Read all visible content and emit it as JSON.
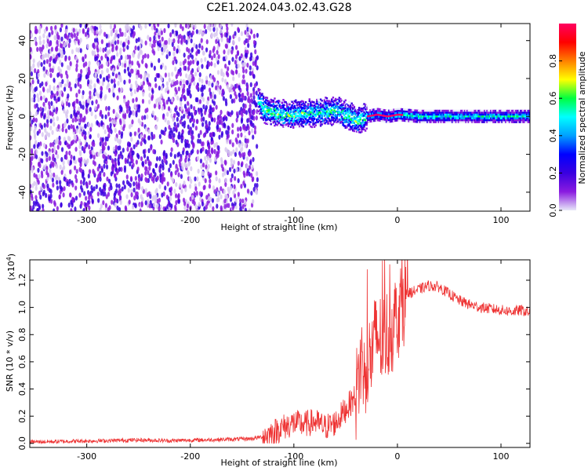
{
  "chart_data": [
    {
      "type": "heatmap",
      "title": "C2E1.2024.043.02.43.G28",
      "xlabel": "Height of straight line (km)",
      "ylabel": "Frequency (Hz)",
      "xlim": [
        -355,
        128
      ],
      "ylim": [
        -50,
        49
      ],
      "x_ticks": [
        "-300",
        "-200",
        "-100",
        "0",
        "100"
      ],
      "x_tick_values": [
        -300,
        -200,
        -100,
        0,
        100
      ],
      "y_ticks": [
        "-40",
        "-20",
        "0",
        "20",
        "40"
      ],
      "y_tick_values": [
        -40,
        -20,
        0,
        20,
        40
      ],
      "colorbar": {
        "label": "Normalized spectral amplitude",
        "range": [
          0,
          1
        ],
        "ticks": [
          "0.0",
          "0.2",
          "0.4",
          "0.6",
          "0.8"
        ],
        "tick_values": [
          0.0,
          0.2,
          0.4,
          0.6,
          0.8
        ],
        "colormap": [
          "#e8e8f8",
          "#8a1be0",
          "#3a00e0",
          "#0000ff",
          "#00a0ff",
          "#00ffff",
          "#00ff40",
          "#ffff00",
          "#ff8000",
          "#ff0000",
          "#ff0060"
        ]
      },
      "ridge": {
        "x": [
          -140,
          -130,
          -120,
          -100,
          -80,
          -60,
          -50,
          -40,
          -30,
          -20,
          -10,
          0,
          20,
          60,
          100,
          128
        ],
        "y": [
          14,
          4,
          2,
          1,
          2,
          3,
          1,
          -2,
          0,
          1,
          0,
          1,
          0,
          0,
          0,
          0
        ]
      }
    },
    {
      "type": "line",
      "xlabel": "Height of straight line (km)",
      "ylabel": "SNR (10 * v/v)",
      "y_exponent": "(x10",
      "y_exponent_power": "4",
      "y_exponent_close": ")",
      "xlim": [
        -355,
        128
      ],
      "ylim": [
        -0.03,
        1.35
      ],
      "x_ticks": [
        "-300",
        "-200",
        "-100",
        "0",
        "100"
      ],
      "x_tick_values": [
        -300,
        -200,
        -100,
        0,
        100
      ],
      "y_ticks": [
        "0.0",
        "0.2",
        "0.4",
        "0.6",
        "0.8",
        "1.0",
        "1.2"
      ],
      "y_tick_values": [
        0.0,
        0.2,
        0.4,
        0.6,
        0.8,
        1.0,
        1.2
      ],
      "color": "#ee3333",
      "series": [
        {
          "x": [
            -355,
            -320,
            -280,
            -250,
            -220,
            -190,
            -160,
            -140,
            -130,
            -120,
            -110,
            -100,
            -90,
            -80,
            -70,
            -60,
            -50,
            -40,
            -35,
            -30,
            -25,
            -20,
            -15,
            -10,
            -5,
            0,
            5,
            10,
            20,
            30,
            40,
            50,
            60,
            70,
            80,
            90,
            100,
            110,
            120,
            128
          ],
          "y": [
            0.01,
            0.015,
            0.02,
            0.025,
            0.02,
            0.025,
            0.03,
            0.035,
            0.05,
            0.08,
            0.12,
            0.15,
            0.14,
            0.16,
            0.12,
            0.15,
            0.25,
            0.35,
            0.6,
            0.55,
            0.65,
            0.8,
            0.75,
            0.8,
            0.85,
            0.95,
            1.05,
            1.1,
            1.13,
            1.16,
            1.15,
            1.1,
            1.05,
            1.02,
            1.0,
            0.99,
            0.98,
            0.97,
            0.98,
            0.96
          ]
        }
      ]
    }
  ]
}
